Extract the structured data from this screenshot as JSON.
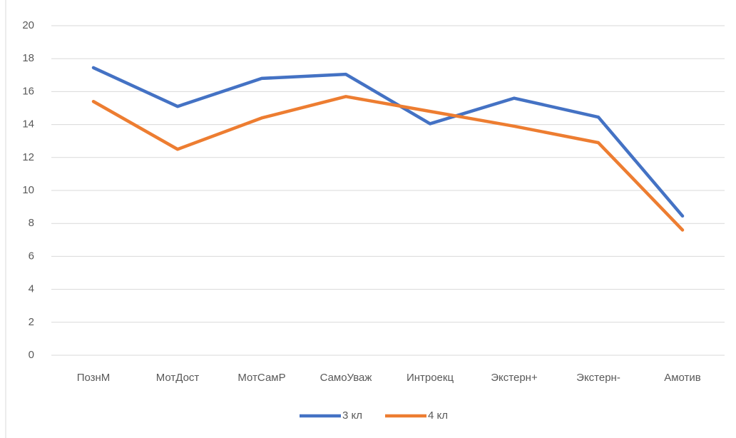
{
  "chart_data": {
    "type": "line",
    "categories": [
      "ПознМ",
      "МотДост",
      "МотСамР",
      "СамоУваж",
      "Интроекц",
      "Экстерн+",
      "Экстерн-",
      "Амотив"
    ],
    "series": [
      {
        "name": "3 кл",
        "color": "#4472c4",
        "values": [
          17.45,
          15.1,
          16.8,
          17.05,
          14.05,
          15.6,
          14.45,
          8.45
        ]
      },
      {
        "name": "4 кл",
        "color": "#ed7d31",
        "values": [
          15.4,
          12.5,
          14.4,
          15.7,
          14.8,
          13.9,
          12.9,
          7.6
        ]
      }
    ],
    "ylim": [
      0,
      20
    ],
    "yticks": [
      0,
      2,
      4,
      6,
      8,
      10,
      12,
      14,
      16,
      18,
      20
    ],
    "grid": true,
    "legend": "bottom"
  }
}
